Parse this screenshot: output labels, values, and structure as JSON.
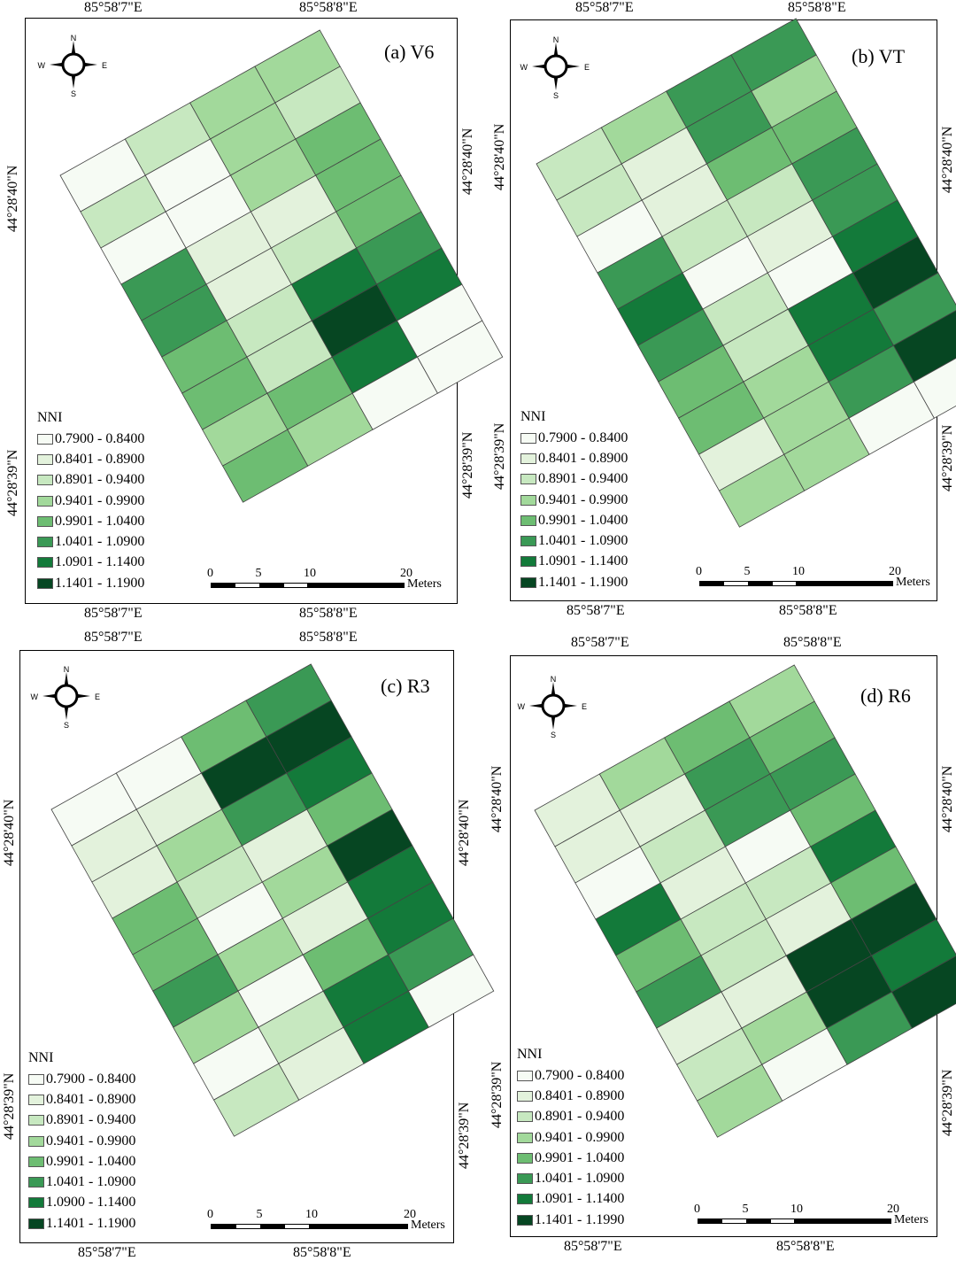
{
  "panels": [
    {
      "id": "a",
      "title": "(a) V6",
      "top_lon_labels": [
        "85°58'7\"E",
        "85°58'8\"E"
      ],
      "bottom_lon_labels": [
        "85°58'7\"E",
        "85°58'8\"E"
      ],
      "left_lat_labels": [
        "44°28'40\"N",
        "44°28'39\"N"
      ],
      "right_lat_labels": [
        "44°28'40\"N",
        "44°28'39\"N"
      ],
      "legend_title": "NNI",
      "legend_items": [
        "0.7900 - 0.8400",
        "0.8401 - 0.8900",
        "0.8901 - 0.9400",
        "0.9401 - 0.9900",
        "0.9901 - 1.0400",
        "1.0401 - 1.0900",
        "1.0901 - 1.1400",
        "1.1401 - 1.1900"
      ],
      "scale_ticks": [
        "0",
        "5",
        "10",
        "20"
      ],
      "scale_unit": "Meters",
      "grid": [
        [
          0,
          2,
          3,
          3
        ],
        [
          2,
          0,
          3,
          2
        ],
        [
          0,
          0,
          3,
          4
        ],
        [
          5,
          1,
          1,
          4
        ],
        [
          5,
          1,
          2,
          4
        ],
        [
          4,
          2,
          6,
          5
        ],
        [
          4,
          2,
          7,
          6
        ],
        [
          3,
          4,
          6,
          0
        ],
        [
          4,
          3,
          0,
          0
        ]
      ]
    },
    {
      "id": "b",
      "title": "(b) VT",
      "top_lon_labels": [
        "85°58'7\"E",
        "85°58'8\"E"
      ],
      "bottom_lon_labels": [
        "85°58'7\"E",
        "85°58'8\"E"
      ],
      "left_lat_labels": [
        "44°28'40\"N",
        "44°28'39\"N"
      ],
      "right_lat_labels": [
        "44°28'40\"N",
        "44°28'39\"N"
      ],
      "legend_title": "NNI",
      "legend_items": [
        "0.7900 - 0.8400",
        "0.8401 - 0.8900",
        "0.8901 - 0.9400",
        "0.9401 - 0.9900",
        "0.9901 - 1.0400",
        "1.0401 - 1.0900",
        "1.0901 - 1.1400",
        "1.1401 - 1.1900"
      ],
      "scale_ticks": [
        "0",
        "5",
        "10",
        "20"
      ],
      "scale_unit": "Meters",
      "grid": [
        [
          2,
          3,
          5,
          5
        ],
        [
          2,
          1,
          5,
          3
        ],
        [
          0,
          1,
          4,
          4
        ],
        [
          5,
          2,
          2,
          5
        ],
        [
          6,
          0,
          1,
          5
        ],
        [
          5,
          2,
          0,
          6
        ],
        [
          4,
          2,
          6,
          7
        ],
        [
          4,
          3,
          6,
          5
        ],
        [
          1,
          3,
          5,
          7
        ],
        [
          3,
          3,
          0,
          0
        ]
      ]
    },
    {
      "id": "c",
      "title": "(c) R3",
      "top_lon_labels": [
        "85°58'7\"E",
        "85°58'8\"E"
      ],
      "bottom_lon_labels": [
        "85°58'7\"E",
        "85°58'8\"E"
      ],
      "left_lat_labels": [
        "44°28'40\"N",
        "44°28'39\"N"
      ],
      "right_lat_labels": [
        "44°28'40\"N",
        "44°28'39\"N"
      ],
      "legend_title": "NNI",
      "legend_items": [
        "0.7900 - 0.8400",
        "0.8401 - 0.8900",
        "0.8901 - 0.9400",
        "0.9401 - 0.9900",
        "0.9901 - 1.0400",
        "1.0401 - 1.0900",
        "1.0900 - 1.1400",
        "1.1401 - 1.1900"
      ],
      "scale_ticks": [
        "0",
        "5",
        "10",
        "20"
      ],
      "scale_unit": "Meters",
      "grid": [
        [
          0,
          0,
          4,
          5
        ],
        [
          1,
          1,
          7,
          7
        ],
        [
          1,
          3,
          5,
          6
        ],
        [
          4,
          2,
          1,
          4
        ],
        [
          4,
          0,
          3,
          7
        ],
        [
          5,
          3,
          1,
          6
        ],
        [
          3,
          0,
          4,
          6
        ],
        [
          0,
          2,
          6,
          5
        ],
        [
          2,
          1,
          6,
          0
        ]
      ]
    },
    {
      "id": "d",
      "title": "(d) R6",
      "top_lon_labels": [
        "85°58'7\"E",
        "85°58'8\"E"
      ],
      "bottom_lon_labels": [
        "85°58'7\"E",
        "85°58'8\"E"
      ],
      "left_lat_labels": [
        "44°28'40\"N",
        "44°28'39\"N"
      ],
      "right_lat_labels": [
        "44°28'40\"N",
        "44°28'39\"N"
      ],
      "legend_title": "NNI",
      "legend_items": [
        "0.7900 - 0.8400",
        "0.8401 - 0.8900",
        "0.8901 - 0.9400",
        "0.9401 - 0.9900",
        "0.9901 - 1.0400",
        "1.0401 - 1.0900",
        "1.0901 - 1.1400",
        "1.1401 - 1.1990"
      ],
      "scale_ticks": [
        "0",
        "5",
        "10",
        "20"
      ],
      "scale_unit": "Meters",
      "grid": [
        [
          1,
          3,
          4,
          3
        ],
        [
          1,
          1,
          5,
          4
        ],
        [
          0,
          2,
          5,
          5
        ],
        [
          6,
          1,
          0,
          4
        ],
        [
          4,
          2,
          2,
          6
        ],
        [
          5,
          2,
          1,
          4
        ],
        [
          1,
          1,
          7,
          7
        ],
        [
          2,
          3,
          7,
          6
        ],
        [
          3,
          0,
          5,
          7
        ]
      ]
    }
  ],
  "compass": {
    "n": "N",
    "s": "S",
    "e": "E",
    "w": "W"
  },
  "palette": [
    "#f6fbf4",
    "#e3f2dc",
    "#c7e8c0",
    "#a2d99b",
    "#6dbd72",
    "#3a9955",
    "#137a3a",
    "#064622"
  ]
}
